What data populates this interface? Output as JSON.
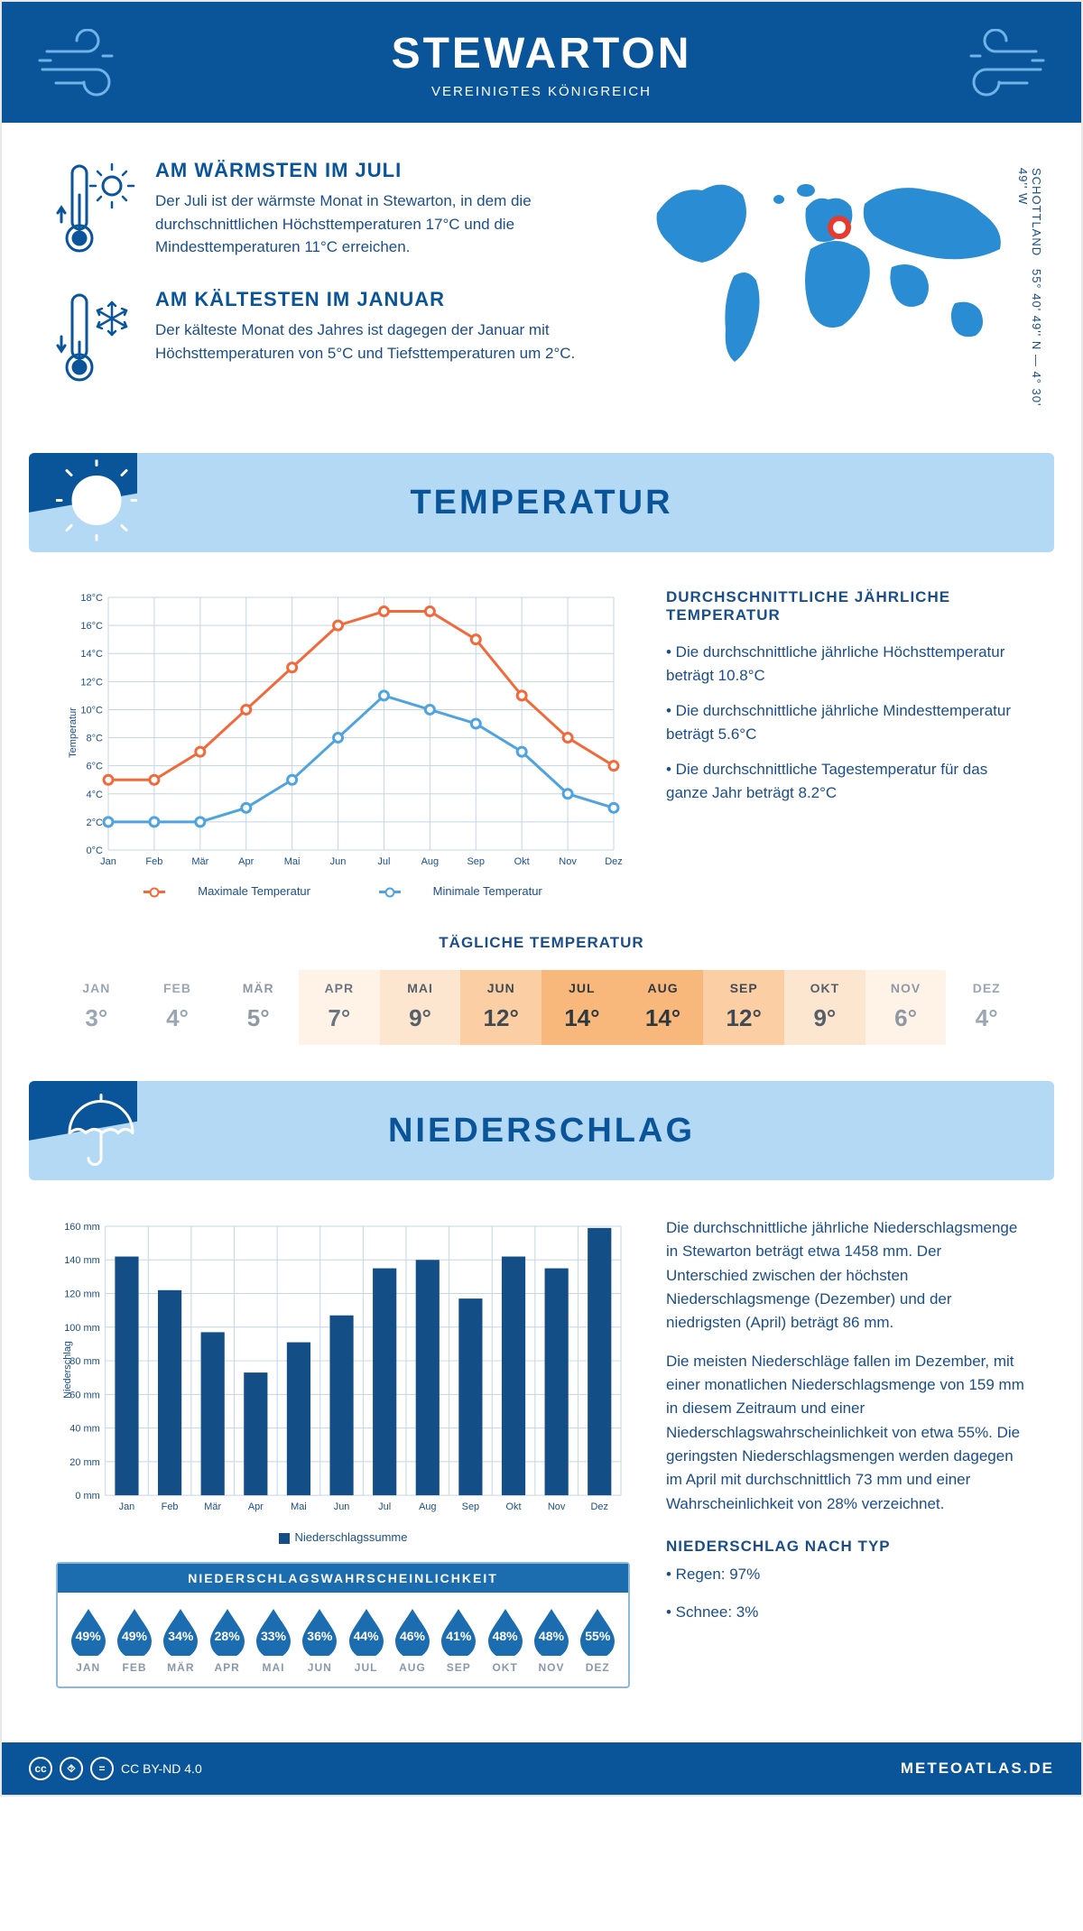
{
  "header": {
    "title": "STEWARTON",
    "subtitle": "VEREINIGTES KÖNIGREICH"
  },
  "colors": {
    "brand": "#0a5599",
    "brand_light": "#b3d9f5",
    "text": "#1a4e8a",
    "accent_orange": "#f26a3b",
    "accent_blue": "#4ea3e0",
    "grid": "#c5d5e5",
    "bar": "#134e86",
    "drop": "#1c6cb0",
    "map_fill": "#2a8dd4",
    "marker": "#e63b2e"
  },
  "facts": {
    "warm": {
      "title": "AM WÄRMSTEN IM JULI",
      "text": "Der Juli ist der wärmste Monat in Stewarton, in dem die durchschnittlichen Höchsttemperaturen 17°C und die Mindesttemperaturen 11°C erreichen."
    },
    "cold": {
      "title": "AM KÄLTESTEN IM JANUAR",
      "text": "Der kälteste Monat des Jahres ist dagegen der Januar mit Höchsttemperaturen von 5°C und Tiefsttemperaturen um 2°C."
    }
  },
  "map": {
    "coords": "55° 40' 49'' N — 4° 30' 49'' W",
    "region": "SCHOTTLAND",
    "marker_x": 232,
    "marker_y": 76
  },
  "sections": {
    "temp": "TEMPERATUR",
    "precip": "NIEDERSCHLAG"
  },
  "months": [
    "Jan",
    "Feb",
    "Mär",
    "Apr",
    "Mai",
    "Jun",
    "Jul",
    "Aug",
    "Sep",
    "Okt",
    "Nov",
    "Dez"
  ],
  "months_upper": [
    "JAN",
    "FEB",
    "MÄR",
    "APR",
    "MAI",
    "JUN",
    "JUL",
    "AUG",
    "SEP",
    "OKT",
    "NOV",
    "DEZ"
  ],
  "temp_chart": {
    "type": "line",
    "ylabel": "Temperatur",
    "ylim": [
      0,
      18
    ],
    "ytick_step": 2,
    "ytick_suffix": "°C",
    "series": [
      {
        "name": "Maximale Temperatur",
        "color": "#f26a3b",
        "values": [
          5,
          5,
          7,
          10,
          13,
          16,
          17,
          17,
          15,
          11,
          8,
          6
        ]
      },
      {
        "name": "Minimale Temperatur",
        "color": "#4ea3e0",
        "values": [
          2,
          2,
          2,
          3,
          5,
          8,
          11,
          10,
          9,
          7,
          4,
          3
        ]
      }
    ],
    "legend": {
      "max": "Maximale Temperatur",
      "min": "Minimale Temperatur"
    }
  },
  "temp_info": {
    "title": "DURCHSCHNITTLICHE JÄHRLICHE TEMPERATUR",
    "lines": [
      "• Die durchschnittliche jährliche Höchsttemperatur beträgt 10.8°C",
      "• Die durchschnittliche jährliche Mindesttemperatur beträgt 5.6°C",
      "• Die durchschnittliche Tagestemperatur für das ganze Jahr beträgt 8.2°C"
    ]
  },
  "daily": {
    "title": "TÄGLICHE TEMPERATUR",
    "values": [
      "3°",
      "4°",
      "5°",
      "7°",
      "9°",
      "12°",
      "14°",
      "14°",
      "12°",
      "9°",
      "6°",
      "4°"
    ],
    "bg_colors": [
      "#ffffff",
      "#ffffff",
      "#ffffff",
      "#fff3e8",
      "#fde6cf",
      "#fbcfa3",
      "#f8b87c",
      "#f8b87c",
      "#fbcfa3",
      "#fde6cf",
      "#fff3e8",
      "#ffffff"
    ],
    "text_colors": [
      "#9aa7b3",
      "#9aa7b3",
      "#8e99a4",
      "#6b7681",
      "#56606a",
      "#414a53",
      "#30383f",
      "#30383f",
      "#414a53",
      "#56606a",
      "#8e99a4",
      "#9aa7b3"
    ]
  },
  "precip_chart": {
    "type": "bar",
    "ylabel": "Niederschlag",
    "legend": "Niederschlagssumme",
    "ylim": [
      0,
      160
    ],
    "ytick_step": 20,
    "ytick_suffix": " mm",
    "values": [
      142,
      122,
      97,
      73,
      91,
      107,
      135,
      140,
      117,
      142,
      135,
      159
    ],
    "bar_color": "#134e86",
    "bar_width": 0.55
  },
  "precip_info": {
    "p1": "Die durchschnittliche jährliche Niederschlagsmenge in Stewarton beträgt etwa 1458 mm. Der Unterschied zwischen der höchsten Niederschlagsmenge (Dezember) und der niedrigsten (April) beträgt 86 mm.",
    "p2": "Die meisten Niederschläge fallen im Dezember, mit einer monatlichen Niederschlagsmenge von 159 mm in diesem Zeitraum und einer Niederschlagswahrscheinlichkeit von etwa 55%. Die geringsten Niederschlagsmengen werden dagegen im April mit durchschnittlich 73 mm und einer Wahrscheinlichkeit von 28% verzeichnet.",
    "type_title": "NIEDERSCHLAG NACH TYP",
    "type_lines": [
      "• Regen: 97%",
      "• Schnee: 3%"
    ]
  },
  "precip_prob": {
    "title": "NIEDERSCHLAGSWAHRSCHEINLICHKEIT",
    "values": [
      "49%",
      "49%",
      "34%",
      "28%",
      "33%",
      "36%",
      "44%",
      "46%",
      "41%",
      "48%",
      "48%",
      "55%"
    ]
  },
  "footer": {
    "license": "CC BY-ND 4.0",
    "site": "METEOATLAS.DE"
  }
}
